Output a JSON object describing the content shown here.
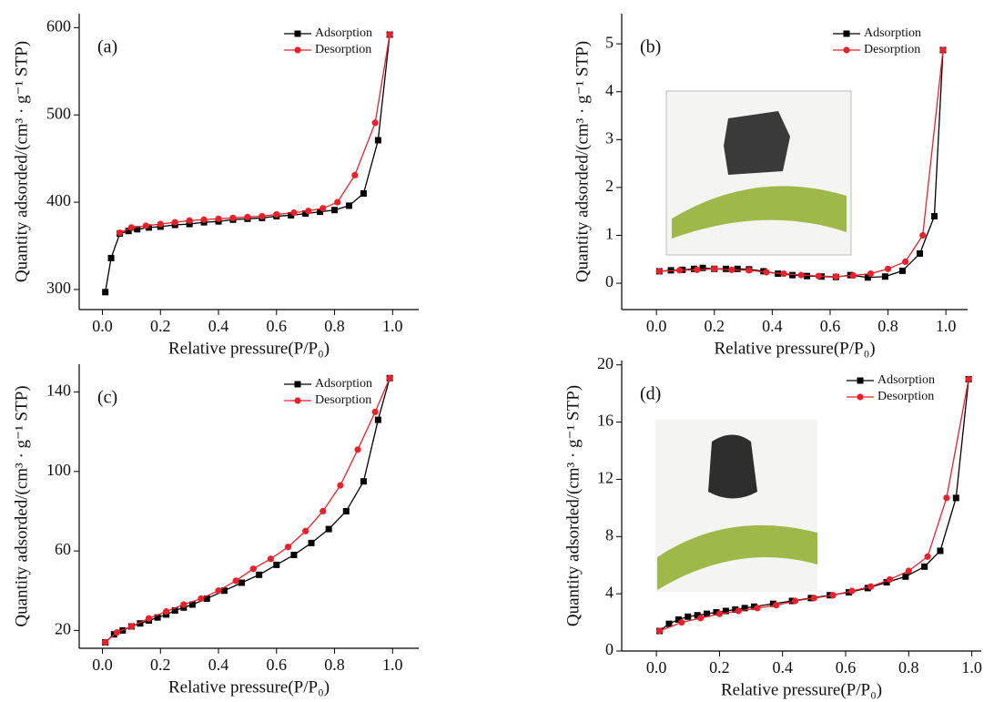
{
  "chart_data": [
    {
      "type": "line",
      "title": "(a)",
      "x_label": "Relative pressure(P/P₀)",
      "y_label": "Quantity adsorded/(cm³ · g⁻¹ STP)",
      "xlim": [
        -0.08,
        1.09
      ],
      "xticks": [
        {
          "value": 0,
          "label": "0.0"
        },
        0.2,
        0.4,
        0.6,
        0.8,
        {
          "value": 1,
          "label": "1.0"
        }
      ],
      "ylim": [
        277,
        616
      ],
      "yticks": [
        300,
        400,
        500,
        600
      ],
      "legend": "upper right",
      "series": [
        {
          "name": "Adsorption",
          "color": "#000000",
          "marker": "square",
          "x": [
            0.01,
            0.03,
            0.06,
            0.09,
            0.12,
            0.16,
            0.2,
            0.25,
            0.3,
            0.35,
            0.4,
            0.45,
            0.5,
            0.55,
            0.6,
            0.65,
            0.7,
            0.75,
            0.8,
            0.85,
            0.9,
            0.95,
            0.99
          ],
          "values": [
            297,
            336,
            364,
            367,
            369,
            371,
            372,
            374,
            375,
            377,
            378,
            380,
            381,
            382,
            384,
            385,
            387,
            389,
            391,
            396,
            410,
            471,
            592
          ]
        },
        {
          "name": "Desorption",
          "color": "#e8212b",
          "marker": "circle",
          "x": [
            0.99,
            0.94,
            0.87,
            0.81,
            0.76,
            0.71,
            0.66,
            0.6,
            0.55,
            0.5,
            0.45,
            0.4,
            0.35,
            0.3,
            0.25,
            0.2,
            0.15,
            0.1,
            0.06
          ],
          "values": [
            592,
            491,
            431,
            400,
            393,
            390,
            388,
            386,
            384,
            383,
            382,
            381,
            380,
            379,
            377,
            375,
            373,
            371,
            365
          ]
        }
      ]
    },
    {
      "type": "line",
      "title": "(b)",
      "x_label": "Relative pressure(P/P₀)",
      "y_label": "Quantity adsorded/(cm³ · g⁻¹ STP)",
      "xlim": [
        -0.12,
        1.075
      ],
      "xticks": [
        {
          "value": 0,
          "label": "0.0"
        },
        0.2,
        0.4,
        0.6,
        0.8,
        {
          "value": 1,
          "label": "1.0"
        }
      ],
      "ylim": [
        -0.55,
        5.63
      ],
      "yticks": [
        0,
        1,
        2,
        3,
        4,
        5
      ],
      "legend": "upper right",
      "series": [
        {
          "name": "Adsorption",
          "color": "#000000",
          "marker": "square",
          "x": [
            0.01,
            0.05,
            0.09,
            0.13,
            0.16,
            0.2,
            0.24,
            0.28,
            0.32,
            0.37,
            0.42,
            0.47,
            0.52,
            0.57,
            0.62,
            0.67,
            0.73,
            0.79,
            0.85,
            0.91,
            0.96,
            0.99
          ],
          "values": [
            0.25,
            0.27,
            0.28,
            0.3,
            0.32,
            0.3,
            0.3,
            0.3,
            0.29,
            0.25,
            0.2,
            0.17,
            0.15,
            0.14,
            0.13,
            0.17,
            0.12,
            0.14,
            0.26,
            0.62,
            1.4,
            4.87
          ]
        },
        {
          "name": "Desorption",
          "color": "#e8212b",
          "marker": "circle",
          "x": [
            0.99,
            0.92,
            0.86,
            0.8,
            0.74,
            0.68,
            0.62,
            0.56,
            0.5,
            0.44,
            0.38,
            0.32,
            0.26,
            0.2,
            0.14,
            0.08,
            0.01
          ],
          "values": [
            4.87,
            1.0,
            0.45,
            0.3,
            0.2,
            0.16,
            0.14,
            0.15,
            0.17,
            0.2,
            0.23,
            0.27,
            0.28,
            0.3,
            0.28,
            0.27,
            0.25
          ]
        }
      ]
    },
    {
      "type": "line",
      "title": "(c)",
      "x_label": "Relative pressure(P/P₀)",
      "y_label": "Quantity adsorded/(cm³ · g⁻¹ STP)",
      "xlim": [
        -0.08,
        1.09
      ],
      "xticks": [
        {
          "value": 0,
          "label": "0.0"
        },
        0.2,
        0.4,
        0.6,
        0.8,
        {
          "value": 1,
          "label": "1.0"
        }
      ],
      "ylim": [
        11,
        154
      ],
      "yticks": [
        20,
        60,
        100,
        140
      ],
      "legend": "upper right",
      "series": [
        {
          "name": "Adsorption",
          "color": "#000000",
          "marker": "square",
          "x": [
            0.01,
            0.04,
            0.07,
            0.1,
            0.13,
            0.16,
            0.19,
            0.22,
            0.25,
            0.28,
            0.31,
            0.36,
            0.42,
            0.48,
            0.54,
            0.6,
            0.66,
            0.72,
            0.78,
            0.84,
            0.9,
            0.95,
            0.99
          ],
          "values": [
            14,
            18,
            20,
            22,
            23.5,
            25,
            26.5,
            28,
            30,
            31.5,
            33,
            36,
            40,
            44,
            48,
            53,
            58,
            64,
            71,
            80,
            95,
            126,
            147
          ]
        },
        {
          "name": "Desorption",
          "color": "#e8212b",
          "marker": "circle",
          "x": [
            0.99,
            0.94,
            0.88,
            0.82,
            0.76,
            0.7,
            0.64,
            0.58,
            0.52,
            0.46,
            0.4,
            0.34,
            0.28,
            0.22,
            0.16,
            0.1,
            0.05,
            0.01
          ],
          "values": [
            147,
            130,
            111,
            93,
            80,
            70,
            62,
            56,
            51,
            45,
            40,
            36,
            33,
            29.5,
            26,
            22,
            19,
            14
          ]
        }
      ]
    },
    {
      "type": "line",
      "title": "(d)",
      "x_label": "Relative pressure(P/P₀)",
      "y_label": "Quantity adsorded/(cm³ · g⁻¹ STP)",
      "xlim": [
        -0.11,
        1.03
      ],
      "xticks": [
        {
          "value": 0,
          "label": "0.0"
        },
        0.2,
        0.4,
        0.6,
        0.8,
        {
          "value": 1,
          "label": "1.0"
        }
      ],
      "ylim": [
        0,
        20.3
      ],
      "yticks": [
        0,
        4,
        8,
        12,
        16,
        20
      ],
      "legend": "upper right",
      "series": [
        {
          "name": "Adsorption",
          "color": "#000000",
          "marker": "square",
          "x": [
            0.01,
            0.04,
            0.07,
            0.1,
            0.13,
            0.16,
            0.19,
            0.22,
            0.25,
            0.28,
            0.31,
            0.37,
            0.43,
            0.49,
            0.55,
            0.61,
            0.67,
            0.73,
            0.79,
            0.85,
            0.9,
            0.95,
            0.99
          ],
          "values": [
            1.4,
            1.9,
            2.2,
            2.4,
            2.5,
            2.6,
            2.7,
            2.8,
            2.9,
            3.0,
            3.1,
            3.3,
            3.5,
            3.7,
            3.9,
            4.1,
            4.4,
            4.8,
            5.2,
            5.9,
            7.0,
            10.7,
            19
          ]
        },
        {
          "name": "Desorption",
          "color": "#e8212b",
          "marker": "circle",
          "x": [
            0.99,
            0.92,
            0.86,
            0.8,
            0.74,
            0.68,
            0.62,
            0.56,
            0.5,
            0.44,
            0.38,
            0.32,
            0.26,
            0.2,
            0.14,
            0.08,
            0.01
          ],
          "values": [
            19,
            10.7,
            6.6,
            5.6,
            5.0,
            4.5,
            4.2,
            3.9,
            3.7,
            3.5,
            3.2,
            3.0,
            2.8,
            2.6,
            2.3,
            2.0,
            1.4
          ]
        }
      ]
    }
  ]
}
